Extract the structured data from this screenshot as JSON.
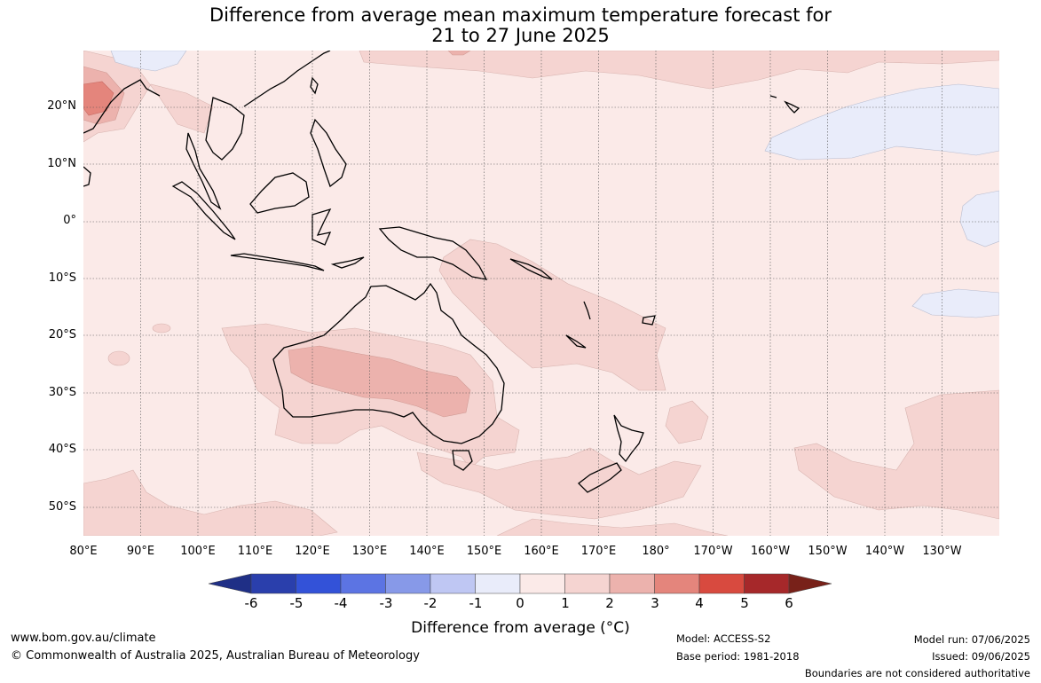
{
  "title": {
    "line1": "Difference from average mean maximum temperature forecast for",
    "line2": "21 to 27 June 2025"
  },
  "map": {
    "lat_labels": [
      "20°N",
      "10°N",
      "0°",
      "10°S",
      "20°S",
      "30°S",
      "40°S",
      "50°S"
    ],
    "lon_labels": [
      "80°E",
      "90°E",
      "100°E",
      "110°E",
      "120°E",
      "130°E",
      "140°E",
      "150°E",
      "160°E",
      "170°E",
      "180°",
      "170°W",
      "160°W",
      "150°W",
      "140°W",
      "130°W"
    ],
    "colors": {
      "anomaly_0_1": "#fbeae8",
      "anomaly_1_2": "#f5d4d1",
      "anomaly_2_3": "#ecb2ad",
      "anomaly_3_4": "#e4857c",
      "anomaly_m1_0": "#e9ecfa",
      "coastline": "#000000",
      "grid": "#555555"
    }
  },
  "colorbar": {
    "ticks": [
      "-6",
      "-5",
      "-4",
      "-3",
      "-2",
      "-1",
      "0",
      "1",
      "2",
      "3",
      "4",
      "5",
      "6"
    ],
    "colors": [
      "#1f2f86",
      "#2a3fac",
      "#3352d8",
      "#5c74e3",
      "#8799e8",
      "#bfc7f3",
      "#e9ecfa",
      "#fbeae8",
      "#f5d4d1",
      "#ecb2ad",
      "#e4857c",
      "#d84a3f",
      "#a6282a",
      "#782119"
    ],
    "label": "Difference from average (°C)"
  },
  "footer": {
    "website": "www.bom.gov.au/climate",
    "copyright": "© Commonwealth of Australia 2025, Australian Bureau of Meteorology",
    "model": "Model: ACCESS-S2",
    "base_period": "Base period: 1981-2018",
    "model_run": "Model run: 07/06/2025",
    "issued": "Issued: 09/06/2025",
    "disclaimer": "Boundaries are not considered authoritative"
  }
}
